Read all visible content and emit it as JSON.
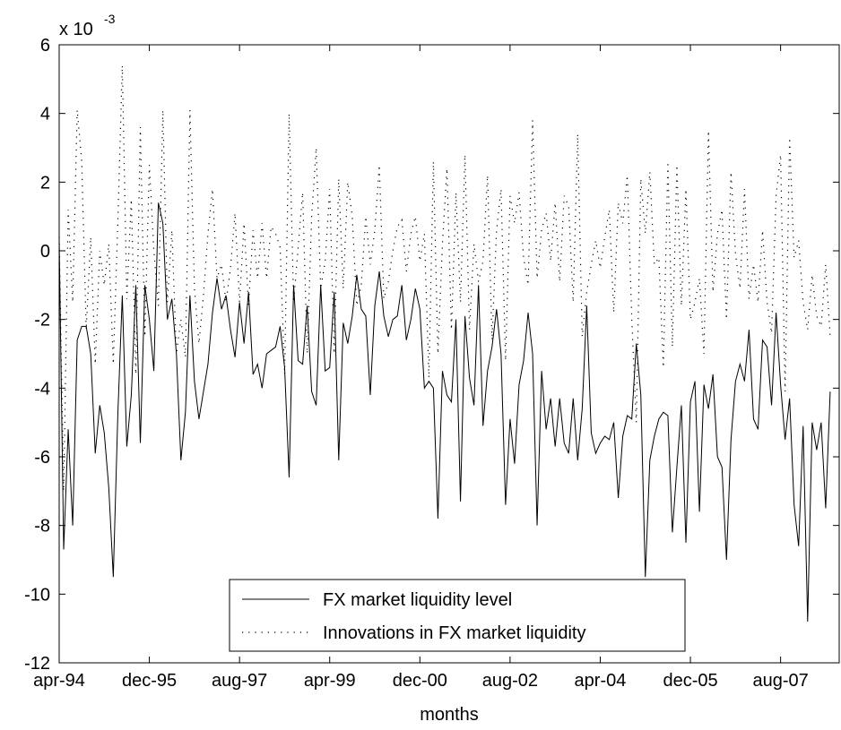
{
  "chart_data": {
    "type": "line",
    "xlabel": "months",
    "y_exponent_label": {
      "base": "x 10",
      "exponent": "-3"
    },
    "ylim": [
      -12,
      6
    ],
    "yticks": [
      -12,
      -10,
      -8,
      -6,
      -4,
      -2,
      0,
      2,
      4,
      6
    ],
    "xlim": [
      0,
      173
    ],
    "xticks": [
      {
        "pos": 0,
        "label": "apr-94"
      },
      {
        "pos": 20,
        "label": "dec-95"
      },
      {
        "pos": 40,
        "label": "aug-97"
      },
      {
        "pos": 60,
        "label": "apr-99"
      },
      {
        "pos": 80,
        "label": "dec-00"
      },
      {
        "pos": 100,
        "label": "aug-02"
      },
      {
        "pos": 120,
        "label": "apr-04"
      },
      {
        "pos": 140,
        "label": "dec-05"
      },
      {
        "pos": 160,
        "label": "aug-07"
      }
    ],
    "grid": false,
    "legend": {
      "position": "bottom-center"
    },
    "series": [
      {
        "name": "FX market liquidity level",
        "style": "solid",
        "values": [
          0.3,
          -8.7,
          -5.2,
          -8.0,
          -2.6,
          -2.2,
          -2.2,
          -3.0,
          -5.9,
          -4.5,
          -5.3,
          -6.9,
          -9.5,
          -4.8,
          -1.3,
          -5.7,
          -4.2,
          -1.0,
          -5.6,
          -1.0,
          -2.0,
          -3.5,
          1.4,
          0.8,
          -2.0,
          -1.4,
          -3.0,
          -6.1,
          -4.7,
          -1.3,
          -3.8,
          -4.9,
          -4.1,
          -3.3,
          -1.8,
          -0.8,
          -1.7,
          -1.3,
          -2.3,
          -3.1,
          -1.5,
          -2.7,
          -1.2,
          -3.6,
          -3.3,
          -4.0,
          -3.0,
          -2.9,
          -2.8,
          -2.2,
          -3.4,
          -6.6,
          -1.0,
          -3.2,
          -3.3,
          -1.6,
          -4.1,
          -4.5,
          -1.0,
          -3.5,
          -3.4,
          -1.2,
          -6.1,
          -2.1,
          -2.7,
          -1.9,
          -0.7,
          -1.7,
          -1.9,
          -4.2,
          -1.6,
          -0.6,
          -1.9,
          -2.5,
          -2.0,
          -1.9,
          -1.0,
          -2.6,
          -2.0,
          -1.1,
          -1.7,
          -4.0,
          -3.8,
          -4.0,
          -7.8,
          -3.5,
          -4.2,
          -4.4,
          -2.0,
          -7.3,
          -1.9,
          -3.7,
          -4.5,
          -1.0,
          -5.1,
          -3.5,
          -2.8,
          -1.7,
          -3.0,
          -7.4,
          -4.9,
          -6.2,
          -3.9,
          -3.2,
          -1.8,
          -3.0,
          -8.0,
          -3.5,
          -5.2,
          -4.3,
          -5.7,
          -4.3,
          -5.6,
          -5.9,
          -4.3,
          -6.1,
          -4.6,
          -1.6,
          -5.3,
          -5.9,
          -5.6,
          -5.4,
          -5.5,
          -5.0,
          -7.2,
          -5.4,
          -4.8,
          -4.9,
          -2.7,
          -4.2,
          -9.5,
          -6.1,
          -5.4,
          -4.9,
          -4.7,
          -4.8,
          -8.2,
          -6.3,
          -4.5,
          -8.5,
          -4.4,
          -3.8,
          -7.6,
          -3.9,
          -4.6,
          -3.6,
          -6.0,
          -6.3,
          -9.0,
          -5.5,
          -3.8,
          -3.3,
          -3.8,
          -2.3,
          -4.9,
          -5.2,
          -2.6,
          -2.8,
          -4.5,
          -1.8,
          -3.9,
          -5.5,
          -4.3,
          -7.4,
          -8.6,
          -5.1,
          -10.8,
          -5.0,
          -5.8,
          -5.0,
          -7.5,
          -4.1
        ]
      },
      {
        "name": "Innovations in FX market liquidity",
        "style": "dotted",
        "values": [
          0.4,
          -7.0,
          1.2,
          -1.5,
          4.1,
          2.6,
          -2.3,
          0.4,
          -3.3,
          0.0,
          -1.0,
          0.2,
          -3.3,
          0.8,
          5.4,
          -1.4,
          1.5,
          -3.6,
          3.6,
          -2.5,
          2.5,
          0.0,
          -1.6,
          4.1,
          -1.5,
          0.6,
          -3.0,
          -2.0,
          -3.1,
          4.1,
          -1.1,
          -2.7,
          -1.3,
          0.5,
          1.8,
          -0.8,
          -0.4,
          -1.5,
          -0.5,
          1.1,
          -1.5,
          0.8,
          -1.6,
          0.6,
          -0.8,
          0.8,
          -0.8,
          0.7,
          0.5,
          0.1,
          -3.6,
          4.0,
          -1.5,
          0.1,
          1.7,
          -3.0,
          1.0,
          3.0,
          -1.1,
          -0.3,
          1.8,
          -3.0,
          2.1,
          -1.1,
          2.0,
          1.0,
          -1.6,
          -1.0,
          1.0,
          -0.4,
          0.6,
          2.5,
          -1.4,
          -0.9,
          0.0,
          0.7,
          0.9,
          -0.6,
          0.5,
          1.0,
          -0.3,
          0.5,
          -3.7,
          2.6,
          -3.0,
          0.2,
          2.4,
          -2.3,
          1.7,
          -1.5,
          2.8,
          -2.3,
          0.2,
          -0.9,
          -0.3,
          2.2,
          -2.6,
          0.6,
          1.8,
          -3.2,
          1.6,
          0.8,
          1.7,
          -0.2,
          -1.0,
          3.8,
          -0.8,
          0.6,
          1.1,
          -0.3,
          1.4,
          -0.9,
          1.6,
          1.3,
          -1.5,
          3.4,
          -2.5,
          -1.2,
          -0.4,
          0.3,
          -0.5,
          0.4,
          1.2,
          -1.8,
          1.4,
          0.8,
          2.2,
          -2.0,
          -5.0,
          2.1,
          0.5,
          2.3,
          -0.4,
          -0.2,
          -3.4,
          2.6,
          -2.8,
          2.5,
          -1.6,
          1.8,
          -2.0,
          -1.5,
          -0.8,
          -3.0,
          3.5,
          -1.2,
          0.5,
          1.2,
          -2.0,
          2.3,
          -0.1,
          -1.1,
          1.8,
          -1.4,
          -0.4,
          -1.5,
          0.6,
          -1.5,
          -2.4,
          1.6,
          2.8,
          -4.1,
          3.3,
          -0.2,
          0.3,
          -1.5,
          -2.3,
          -0.7,
          -1.9,
          -2.2,
          -0.4,
          -2.5
        ]
      }
    ]
  }
}
